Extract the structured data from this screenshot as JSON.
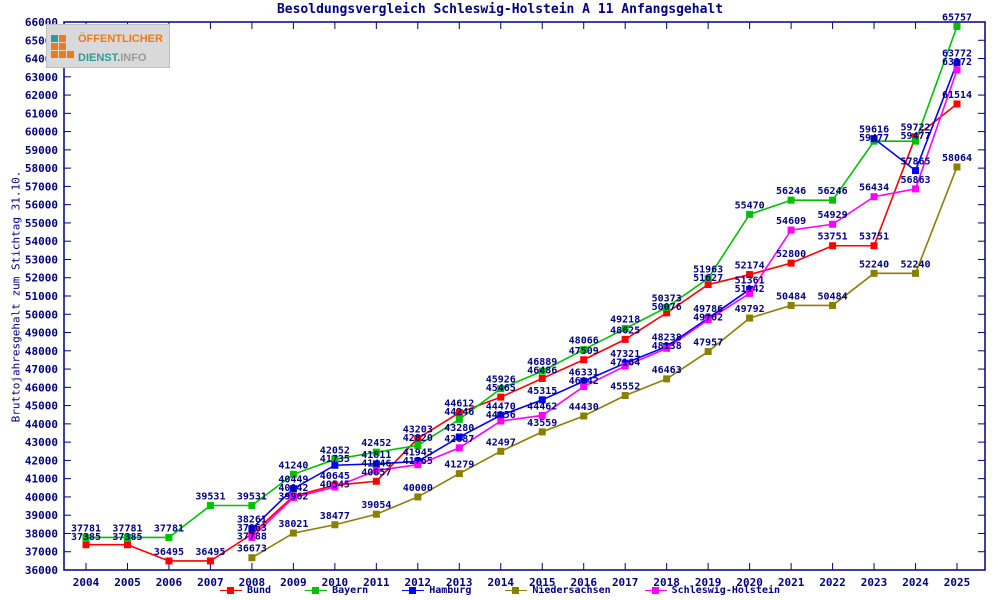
{
  "title": "Besoldungsvergleich Schleswig-Holstein A 11 Anfangsgehalt",
  "logo": {
    "line1": "ÖFFENTLICHER",
    "line2_strong": "DIENST.",
    "line2_rest": "INFO",
    "orange": "#ee7a1a",
    "teal": "#2e9b9b"
  },
  "chart_data": {
    "type": "line",
    "title": "Besoldungsvergleich Schleswig-Holstein A 11 Anfangsgehalt",
    "ylabel": "Bruttojahresgehalt zum Stichtag 31.10.",
    "xlabel": "",
    "x": [
      2004,
      2005,
      2006,
      2007,
      2008,
      2009,
      2010,
      2011,
      2012,
      2013,
      2014,
      2015,
      2016,
      2017,
      2018,
      2019,
      2020,
      2021,
      2022,
      2023,
      2024,
      2025
    ],
    "ylim": [
      36000,
      66000
    ],
    "ytick_step": 1000,
    "grid": false,
    "legend_position": "bottom",
    "frame_color": "#000080",
    "label_color": "#000080",
    "point_labels": true,
    "series": [
      {
        "name": "Bund",
        "color": "#ff0000",
        "values": [
          37385,
          37385,
          36495,
          36495,
          37963,
          40042,
          40645,
          40857,
          43203,
          44612,
          45465,
          46486,
          47509,
          48625,
          50076,
          51627,
          52174,
          52800,
          53751,
          53751,
          59722,
          61514
        ]
      },
      {
        "name": "Bayern",
        "color": "#00c000",
        "values": [
          37781,
          37781,
          37781,
          39531,
          39531,
          41240,
          42052,
          42452,
          42820,
          44246,
          45926,
          46889,
          48066,
          49218,
          50373,
          51963,
          55470,
          56246,
          56246,
          59477,
          59477,
          65757
        ]
      },
      {
        "name": "Hamburg",
        "color": "#0000ff",
        "values": [
          null,
          null,
          null,
          null,
          38261,
          40449,
          41735,
          41811,
          41945,
          43280,
          44470,
          45315,
          46331,
          47321,
          48238,
          49786,
          51361,
          null,
          null,
          59616,
          57865,
          63772
        ]
      },
      {
        "name": "Niedersachsen",
        "color": "#8a8000",
        "values": [
          null,
          null,
          null,
          null,
          36673,
          38021,
          38477,
          39054,
          40000,
          41279,
          42497,
          43559,
          44430,
          45552,
          46463,
          47957,
          49792,
          50484,
          50484,
          52240,
          52240,
          58064
        ]
      },
      {
        "name": "Schleswig-Holstein",
        "color": "#ff00ff",
        "values": [
          null,
          null,
          null,
          null,
          37788,
          39962,
          40545,
          41446,
          41765,
          42687,
          44156,
          44462,
          46042,
          47164,
          48138,
          49702,
          51142,
          54609,
          54929,
          56434,
          56863,
          63372
        ]
      }
    ]
  }
}
